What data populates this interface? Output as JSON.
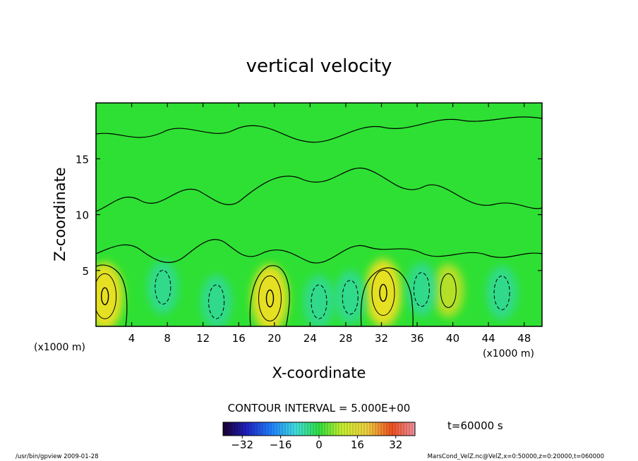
{
  "chart_data": {
    "type": "heatmap",
    "title": "vertical velocity",
    "xlabel": "X-coordinate",
    "ylabel": "Z-coordinate",
    "x_unit_left": "(x1000 m)",
    "x_unit_right": "(x1000 m)",
    "xlim": [
      0,
      50
    ],
    "ylim": [
      0,
      20
    ],
    "x_ticks": [
      4,
      8,
      12,
      16,
      20,
      24,
      28,
      32,
      36,
      40,
      44,
      48
    ],
    "y_ticks": [
      5,
      10,
      15
    ],
    "contour_interval_label": "CONTOUR INTERVAL = 5.000E+00",
    "time_label": "t=60000 s",
    "colorbar": {
      "range": [
        -40,
        40
      ],
      "ticks": [
        -32,
        -16,
        0,
        16,
        32
      ],
      "tick_labels": [
        "−32",
        "−16",
        "0",
        "16",
        "32"
      ]
    },
    "features": [
      {
        "kind": "updraft",
        "x": 1.0,
        "z": 2.7,
        "value": 10
      },
      {
        "kind": "updraft",
        "x": 19.5,
        "z": 2.5,
        "value": 10
      },
      {
        "kind": "updraft",
        "x": 32.2,
        "z": 3.0,
        "value": 10
      },
      {
        "kind": "updraft",
        "x": 39.5,
        "z": 3.2,
        "value": 5
      },
      {
        "kind": "downdraft",
        "x": 7.5,
        "z": 3.5,
        "value": -5
      },
      {
        "kind": "downdraft",
        "x": 13.5,
        "z": 2.2,
        "value": -5
      },
      {
        "kind": "downdraft",
        "x": 25.0,
        "z": 2.2,
        "value": -5
      },
      {
        "kind": "downdraft",
        "x": 28.5,
        "z": 2.6,
        "value": -5
      },
      {
        "kind": "downdraft",
        "x": 36.5,
        "z": 3.3,
        "value": -5
      },
      {
        "kind": "downdraft",
        "x": 45.5,
        "z": 3.0,
        "value": -5
      }
    ]
  },
  "footer": {
    "left": "/usr/bin/gpview   2009-01-28",
    "right": "MarsCond_VelZ.nc@VelZ,x=0:50000,z=0:20000,t=060000"
  },
  "colors": {
    "background_field": "#2ee033",
    "updraft_core": "#f0e020",
    "downdraft_core": "#30d8b0",
    "contour": "#000000"
  }
}
